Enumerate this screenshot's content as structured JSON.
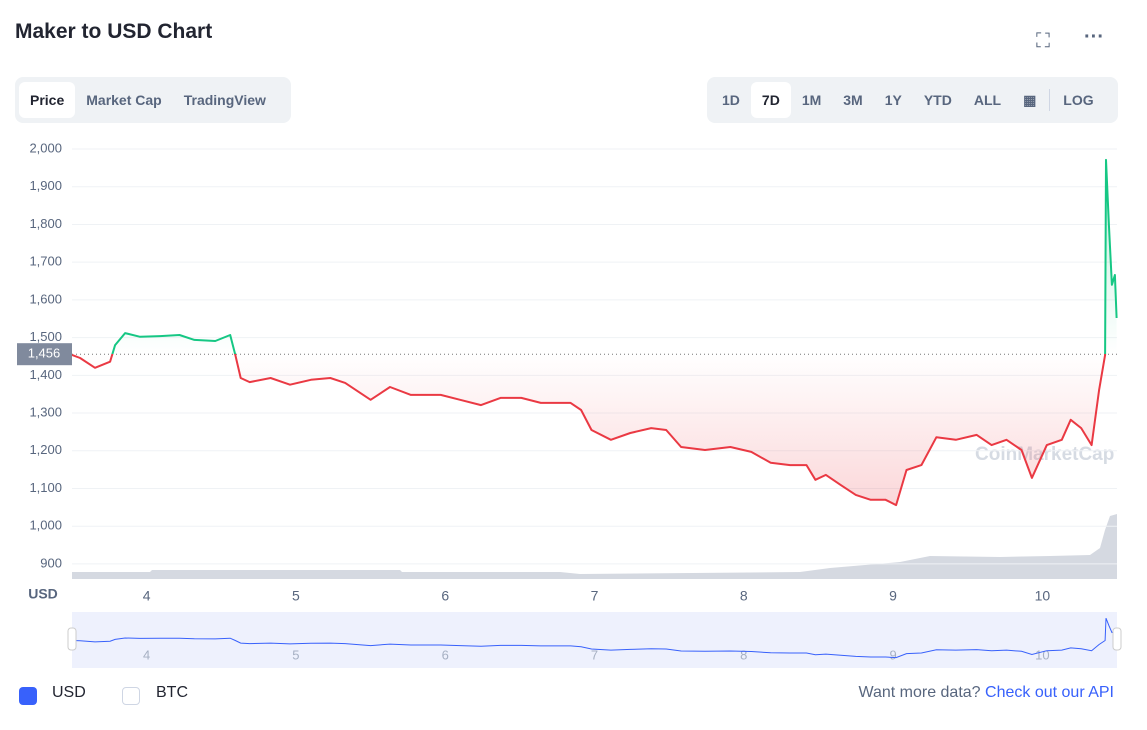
{
  "header": {
    "title": "Maker to USD Chart"
  },
  "tabs": [
    "Price",
    "Market Cap",
    "TradingView"
  ],
  "active_tab": 0,
  "ranges": [
    "1D",
    "7D",
    "1M",
    "3M",
    "1Y",
    "YTD",
    "ALL"
  ],
  "active_range": 1,
  "log_button": "LOG",
  "watermark": "CoinMarketCap",
  "chart_data": {
    "type": "line",
    "y_label": "USD",
    "x": [
      3.5,
      3.554,
      3.654,
      3.755,
      3.789,
      3.856,
      3.956,
      4.09,
      4.22,
      4.32,
      4.46,
      4.56,
      4.594,
      4.63,
      4.69,
      4.83,
      4.96,
      5.1,
      5.23,
      5.33,
      5.5,
      5.63,
      5.77,
      5.97,
      6.1,
      6.24,
      6.37,
      6.51,
      6.64,
      6.84,
      6.91,
      6.98,
      7.11,
      7.24,
      7.38,
      7.48,
      7.58,
      7.74,
      7.91,
      8.05,
      8.18,
      8.31,
      8.42,
      8.48,
      8.55,
      8.65,
      8.75,
      8.85,
      8.95,
      9.02,
      9.09,
      9.19,
      9.29,
      9.42,
      9.56,
      9.66,
      9.76,
      9.86,
      9.93,
      10.03,
      10.13,
      10.19,
      10.26,
      10.33,
      10.38,
      10.42,
      10.426,
      10.446,
      10.466,
      10.486,
      10.497
    ],
    "series": [
      {
        "color_up": "#16c784",
        "color_down": "#ea3943",
        "values": [
          1454,
          1446,
          1420,
          1436,
          1480,
          1512,
          1502,
          1504,
          1507,
          1494,
          1491,
          1507,
          1454,
          1393,
          1382,
          1393,
          1375,
          1388,
          1393,
          1380,
          1335,
          1369,
          1348,
          1348,
          1335,
          1321,
          1340,
          1340,
          1327,
          1327,
          1308,
          1255,
          1229,
          1247,
          1260,
          1255,
          1210,
          1202,
          1210,
          1197,
          1168,
          1162,
          1162,
          1123,
          1136,
          1109,
          1083,
          1070,
          1070,
          1056,
          1149,
          1162,
          1236,
          1229,
          1242,
          1215,
          1229,
          1202,
          1128,
          1215,
          1229,
          1282,
          1260,
          1215,
          1361,
          1454,
          1971,
          1799,
          1640,
          1666,
          1552
        ]
      }
    ],
    "baseline": {
      "value": 1456,
      "label": "1,456"
    },
    "xlim": [
      3.5,
      10.5
    ],
    "xticks": [
      4,
      5,
      6,
      7,
      8,
      9,
      10
    ],
    "ylim": [
      860,
      2000
    ],
    "yticks": [
      900,
      {
        "value": 1000,
        "label": "1,000"
      },
      {
        "value": 1100,
        "label": "1,100"
      },
      {
        "value": 1200,
        "label": "1,200"
      },
      {
        "value": 1300,
        "label": "1,300"
      },
      {
        "value": 1400,
        "label": "1,400"
      },
      {
        "value": 1500,
        "label": "1,500"
      },
      {
        "value": 1600,
        "label": "1,600"
      },
      {
        "value": 1700,
        "label": "1,700"
      },
      {
        "value": 1800,
        "label": "1,800"
      },
      {
        "value": 1900,
        "label": "1,900"
      },
      {
        "value": 2000,
        "label": "2,000"
      }
    ],
    "grid": true
  },
  "footer": {
    "checkboxes": [
      {
        "label": "USD",
        "checked": true
      },
      {
        "label": "BTC",
        "checked": false
      }
    ],
    "prompt": "Want more data?",
    "link": "Check out our API"
  }
}
